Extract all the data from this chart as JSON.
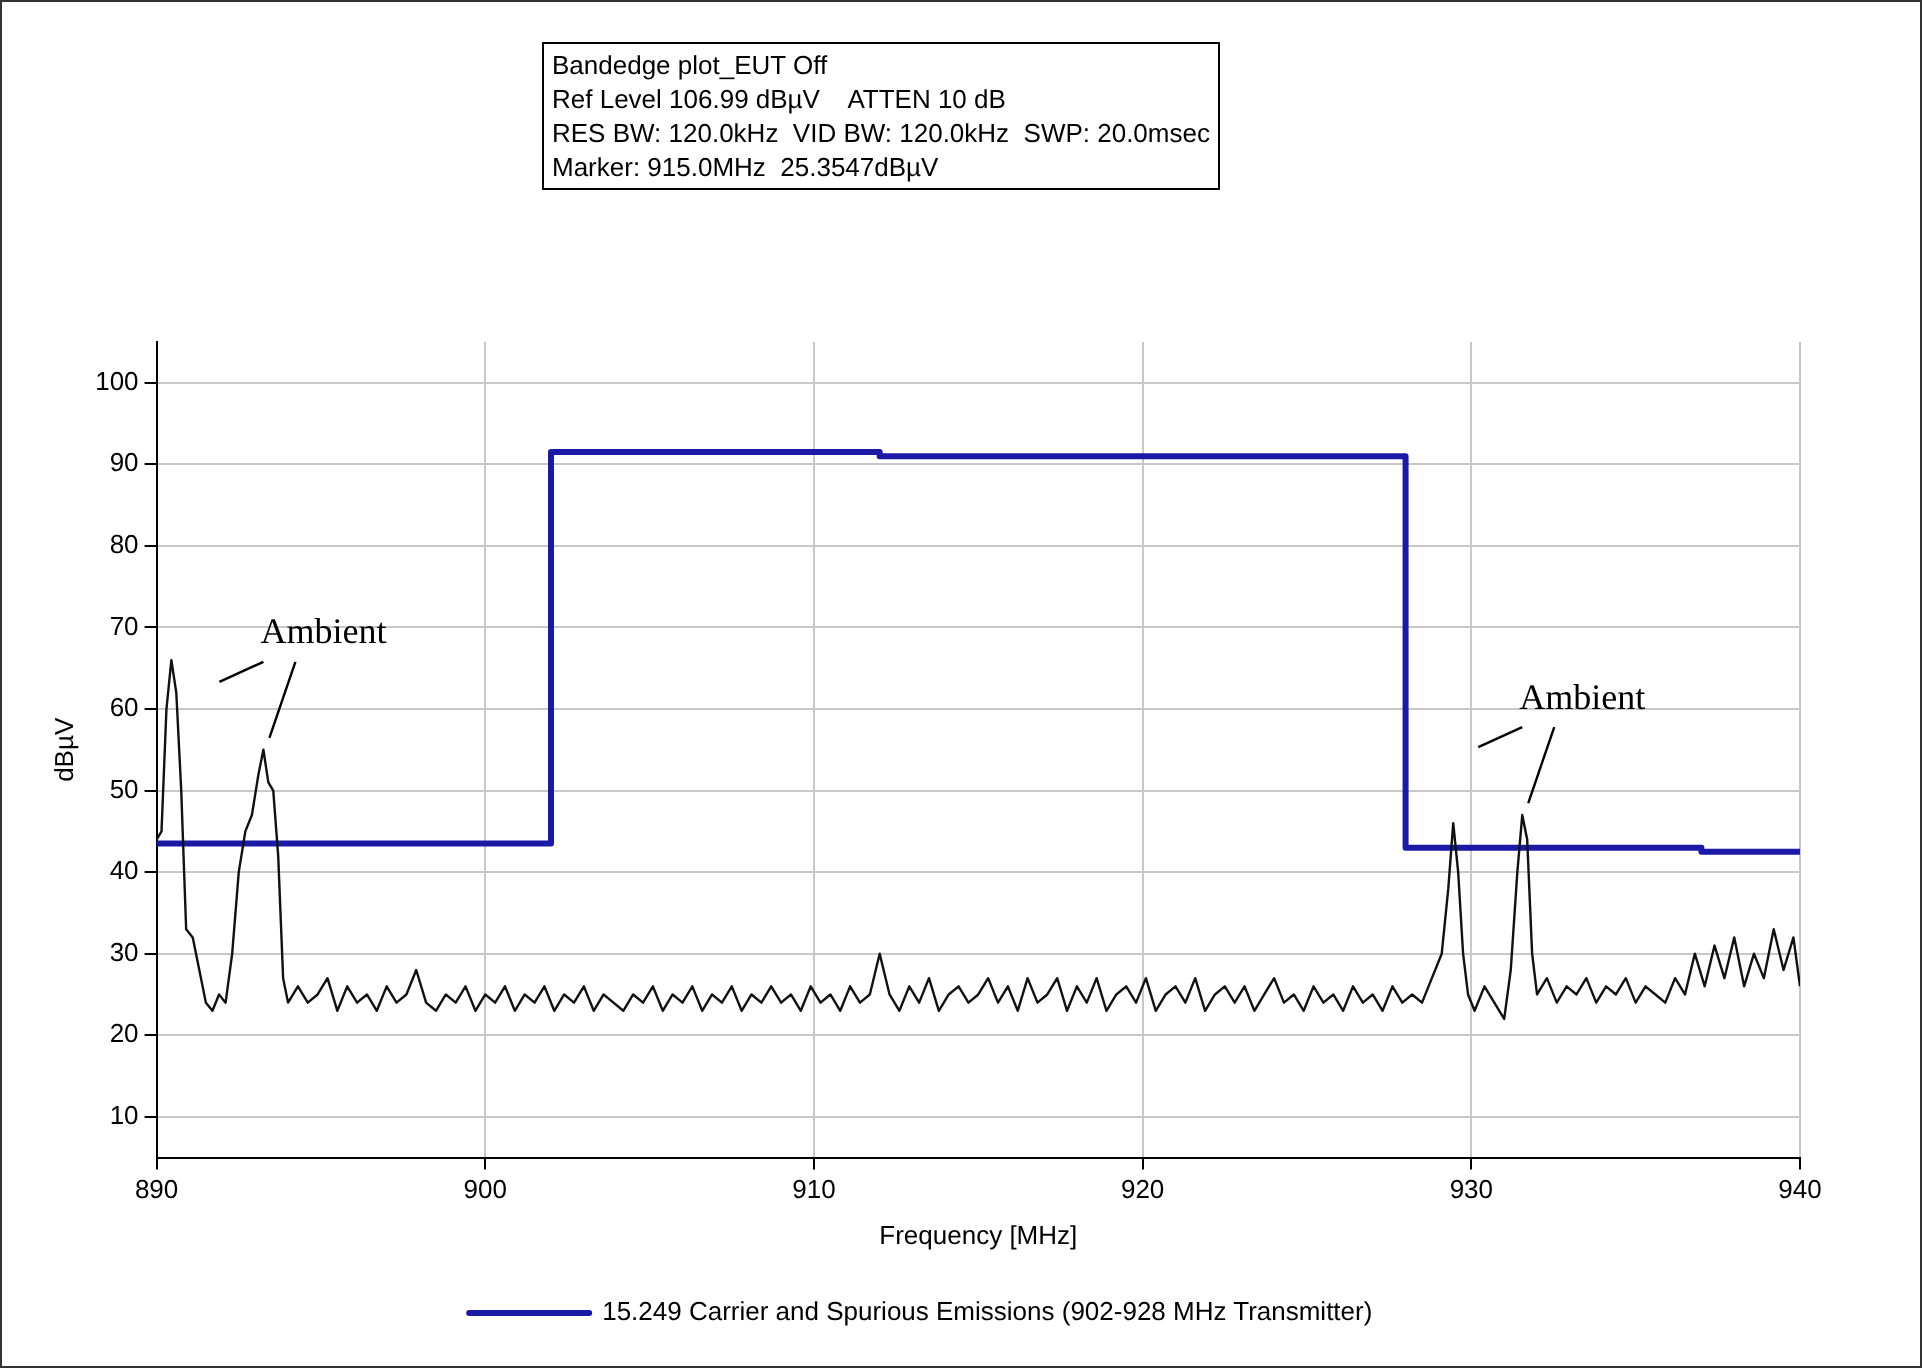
{
  "chart_data": {
    "type": "line",
    "title": "Bandedge plot_EUT Off",
    "xlabel": "Frequency [MHz]",
    "ylabel": "dBµV",
    "annotations": [
      "Ref Level 106.99 dBµV    ATTEN 10 dB",
      "RES BW: 120.0kHz  VID BW: 120.0kHz  SWP: 20.0msec",
      "Marker: 915.0MHz  25.3547dBµV",
      {
        "text": "Ambient",
        "x": 893.25,
        "y": 55
      },
      {
        "text": "Ambient",
        "x": 931.55,
        "y": 47
      }
    ],
    "xlim": [
      890,
      940
    ],
    "xticks": [
      890,
      900,
      910,
      920,
      930,
      940
    ],
    "ylim": [
      5,
      105
    ],
    "yticks": [
      10,
      20,
      30,
      40,
      50,
      60,
      70,
      80,
      90,
      100
    ],
    "grid": true,
    "legend": "bottom",
    "marker": "none",
    "series": [
      {
        "name": "15.249 Carrier and Spurious Emissions (902-928 MHz Transmitter)",
        "type": "step",
        "color": "#1a1aa6",
        "x": [
          890,
          902,
          912,
          928,
          937,
          940
        ],
        "values": [
          43.5,
          91.5,
          91,
          43,
          42.5,
          42.5
        ]
      },
      {
        "type": "line",
        "color": "#111111",
        "x": [
          890.0,
          890.15,
          890.3,
          890.45,
          890.6,
          890.75,
          890.9,
          891.1,
          891.3,
          891.5,
          891.7,
          891.9,
          892.1,
          892.3,
          892.5,
          892.7,
          892.9,
          893.1,
          893.25,
          893.4,
          893.55,
          893.7,
          893.85,
          894.0,
          894.3,
          894.6,
          894.9,
          895.2,
          895.5,
          895.8,
          896.1,
          896.4,
          896.7,
          897.0,
          897.3,
          897.6,
          897.9,
          898.2,
          898.5,
          898.8,
          899.1,
          899.4,
          899.7,
          900.0,
          900.3,
          900.6,
          900.9,
          901.2,
          901.5,
          901.8,
          902.1,
          902.4,
          902.7,
          903.0,
          903.3,
          903.6,
          903.9,
          904.2,
          904.5,
          904.8,
          905.1,
          905.4,
          905.7,
          906.0,
          906.3,
          906.6,
          906.9,
          907.2,
          907.5,
          907.8,
          908.1,
          908.4,
          908.7,
          909.0,
          909.3,
          909.6,
          909.9,
          910.2,
          910.5,
          910.8,
          911.1,
          911.4,
          911.7,
          912.0,
          912.3,
          912.6,
          912.9,
          913.2,
          913.5,
          913.8,
          914.1,
          914.4,
          914.7,
          915.0,
          915.3,
          915.6,
          915.9,
          916.2,
          916.5,
          916.8,
          917.1,
          917.4,
          917.7,
          918.0,
          918.3,
          918.6,
          918.9,
          919.2,
          919.5,
          919.8,
          920.1,
          920.4,
          920.7,
          921.0,
          921.3,
          921.6,
          921.9,
          922.2,
          922.5,
          922.8,
          923.1,
          923.4,
          923.7,
          924.0,
          924.3,
          924.6,
          924.9,
          925.2,
          925.5,
          925.8,
          926.1,
          926.4,
          926.7,
          927.0,
          927.3,
          927.6,
          927.9,
          928.2,
          928.5,
          928.8,
          929.1,
          929.3,
          929.45,
          929.6,
          929.75,
          929.9,
          930.1,
          930.4,
          930.7,
          931.0,
          931.2,
          931.4,
          931.55,
          931.7,
          931.85,
          932.0,
          932.3,
          932.6,
          932.9,
          933.2,
          933.5,
          933.8,
          934.1,
          934.4,
          934.7,
          935.0,
          935.3,
          935.6,
          935.9,
          936.2,
          936.5,
          936.8,
          937.1,
          937.4,
          937.7,
          938.0,
          938.3,
          938.6,
          938.9,
          939.2,
          939.5,
          939.8,
          940.0
        ],
        "values": [
          44,
          45,
          60,
          66,
          62,
          50,
          33,
          32,
          28,
          24,
          23,
          25,
          24,
          30,
          40,
          45,
          47,
          52,
          55,
          51,
          50,
          42,
          27,
          24,
          26,
          24,
          25,
          27,
          23,
          26,
          24,
          25,
          23,
          26,
          24,
          25,
          28,
          24,
          23,
          25,
          24,
          26,
          23,
          25,
          24,
          26,
          23,
          25,
          24,
          26,
          23,
          25,
          24,
          26,
          23,
          25,
          24,
          23,
          25,
          24,
          26,
          23,
          25,
          24,
          26,
          23,
          25,
          24,
          26,
          23,
          25,
          24,
          26,
          24,
          25,
          23,
          26,
          24,
          25,
          23,
          26,
          24,
          25,
          30,
          25,
          23,
          26,
          24,
          27,
          23,
          25,
          26,
          24,
          25,
          27,
          24,
          26,
          23,
          27,
          24,
          25,
          27,
          23,
          26,
          24,
          27,
          23,
          25,
          26,
          24,
          27,
          23,
          25,
          26,
          24,
          27,
          23,
          25,
          26,
          24,
          26,
          23,
          25,
          27,
          24,
          25,
          23,
          26,
          24,
          25,
          23,
          26,
          24,
          25,
          23,
          26,
          24,
          25,
          24,
          27,
          30,
          38,
          46,
          40,
          30,
          25,
          23,
          26,
          24,
          22,
          28,
          40,
          47,
          44,
          30,
          25,
          27,
          24,
          26,
          25,
          27,
          24,
          26,
          25,
          27,
          24,
          26,
          25,
          24,
          27,
          25,
          30,
          26,
          31,
          27,
          32,
          26,
          30,
          27,
          33,
          28,
          32,
          26
        ]
      }
    ]
  }
}
